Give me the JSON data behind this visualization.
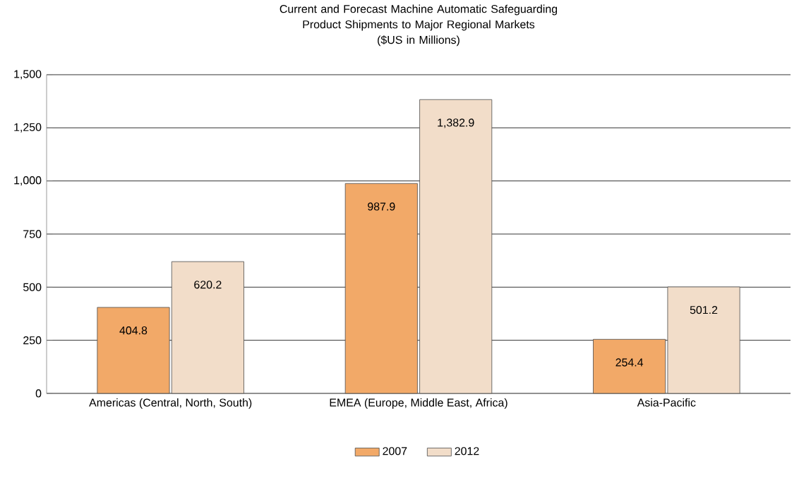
{
  "chart_data": {
    "type": "bar",
    "title": "Current and Forecast Machine Automatic Safeguarding Product Shipments to Major Regional Markets",
    "subtitle": "($US in Millions)",
    "categories": [
      "Americas (Central, North, South)",
      "EMEA (Europe, Middle East, Africa)",
      "Asia-Pacific"
    ],
    "series": [
      {
        "name": "2007",
        "color": "#f2a968",
        "values": [
          404.8,
          987.9,
          254.4
        ],
        "value_labels": [
          "404.8",
          "987.9",
          "254.4"
        ]
      },
      {
        "name": "2012",
        "color": "#f2ddc9",
        "values": [
          620.2,
          1382.9,
          501.2
        ],
        "value_labels": [
          "620.2",
          "1,382.9",
          "501.2"
        ]
      }
    ],
    "ylim": [
      0,
      1500
    ],
    "yticks": [
      0,
      250,
      500,
      750,
      {
        "value": 1000,
        "label": "1,000"
      },
      {
        "value": 1250,
        "label": "1,250"
      },
      {
        "value": 1500,
        "label": "1,500"
      }
    ],
    "grid": "y",
    "legend": "bottom"
  }
}
